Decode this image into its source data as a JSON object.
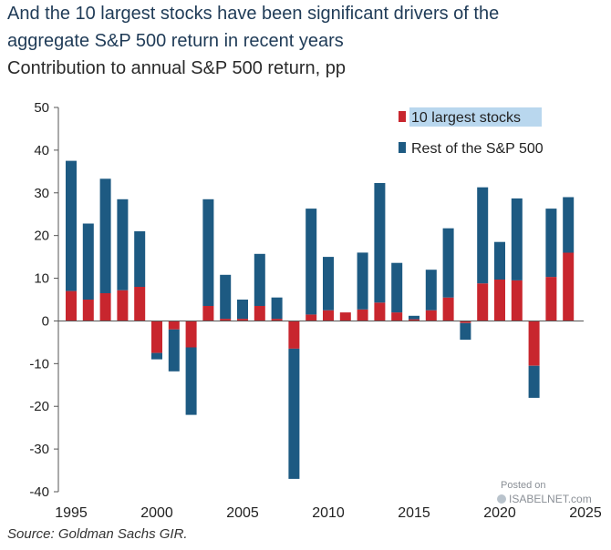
{
  "header": {
    "title_line1": "And the 10 largest stocks have been significant drivers of the",
    "title_line2": "aggregate S&P 500 return in recent years",
    "subtitle": "Contribution to annual S&P 500 return, pp"
  },
  "source": "Source: Goldman Sachs GIR.",
  "watermark": {
    "line1": "Posted on",
    "line2": "ISABELNET.com"
  },
  "colors": {
    "top10": "#c8262e",
    "rest": "#1d5a82",
    "axis": "#555555"
  },
  "chart_data": {
    "type": "bar",
    "stacked": true,
    "title": "Contribution to annual S&P 500 return, pp",
    "xlabel": "",
    "ylabel": "pp",
    "ylim": [
      -40,
      50
    ],
    "yticks": [
      50,
      40,
      30,
      20,
      10,
      0,
      -10,
      -20,
      -30,
      -40
    ],
    "xtick_labels": [
      "1995",
      "2000",
      "2005",
      "2010",
      "2015",
      "2020",
      "2025"
    ],
    "legend_position": "top-right",
    "categories": [
      "1995",
      "1996",
      "1997",
      "1998",
      "1999",
      "2000",
      "2001",
      "2002",
      "2003",
      "2004",
      "2005",
      "2006",
      "2007",
      "2008",
      "2009",
      "2010",
      "2011",
      "2012",
      "2013",
      "2014",
      "2015",
      "2016",
      "2017",
      "2018",
      "2019",
      "2020",
      "2021",
      "2022",
      "2023",
      "2024"
    ],
    "series": [
      {
        "name": "10 largest stocks",
        "color": "#c8262e",
        "values": [
          7,
          5,
          6.5,
          7.2,
          8,
          -7.5,
          -2,
          -6.2,
          3.5,
          0.5,
          0.5,
          3.5,
          0.5,
          -6.5,
          1.5,
          2.5,
          2,
          2.7,
          4.3,
          2,
          0.4,
          2.5,
          5.5,
          -0.5,
          8.8,
          9.7,
          9.5,
          -10.5,
          10.3,
          16
        ]
      },
      {
        "name": "Rest of the S&P 500",
        "color": "#1d5a82",
        "values": [
          30.5,
          17.8,
          26.8,
          21.3,
          13,
          -1.5,
          -9.8,
          -15.8,
          25,
          10.3,
          4.5,
          12.2,
          5,
          -30.5,
          24.8,
          12.5,
          0,
          13.3,
          28,
          11.6,
          0.8,
          9.5,
          16.2,
          -3.9,
          22.5,
          8.8,
          19.2,
          -7.5,
          16,
          13
        ]
      }
    ]
  }
}
